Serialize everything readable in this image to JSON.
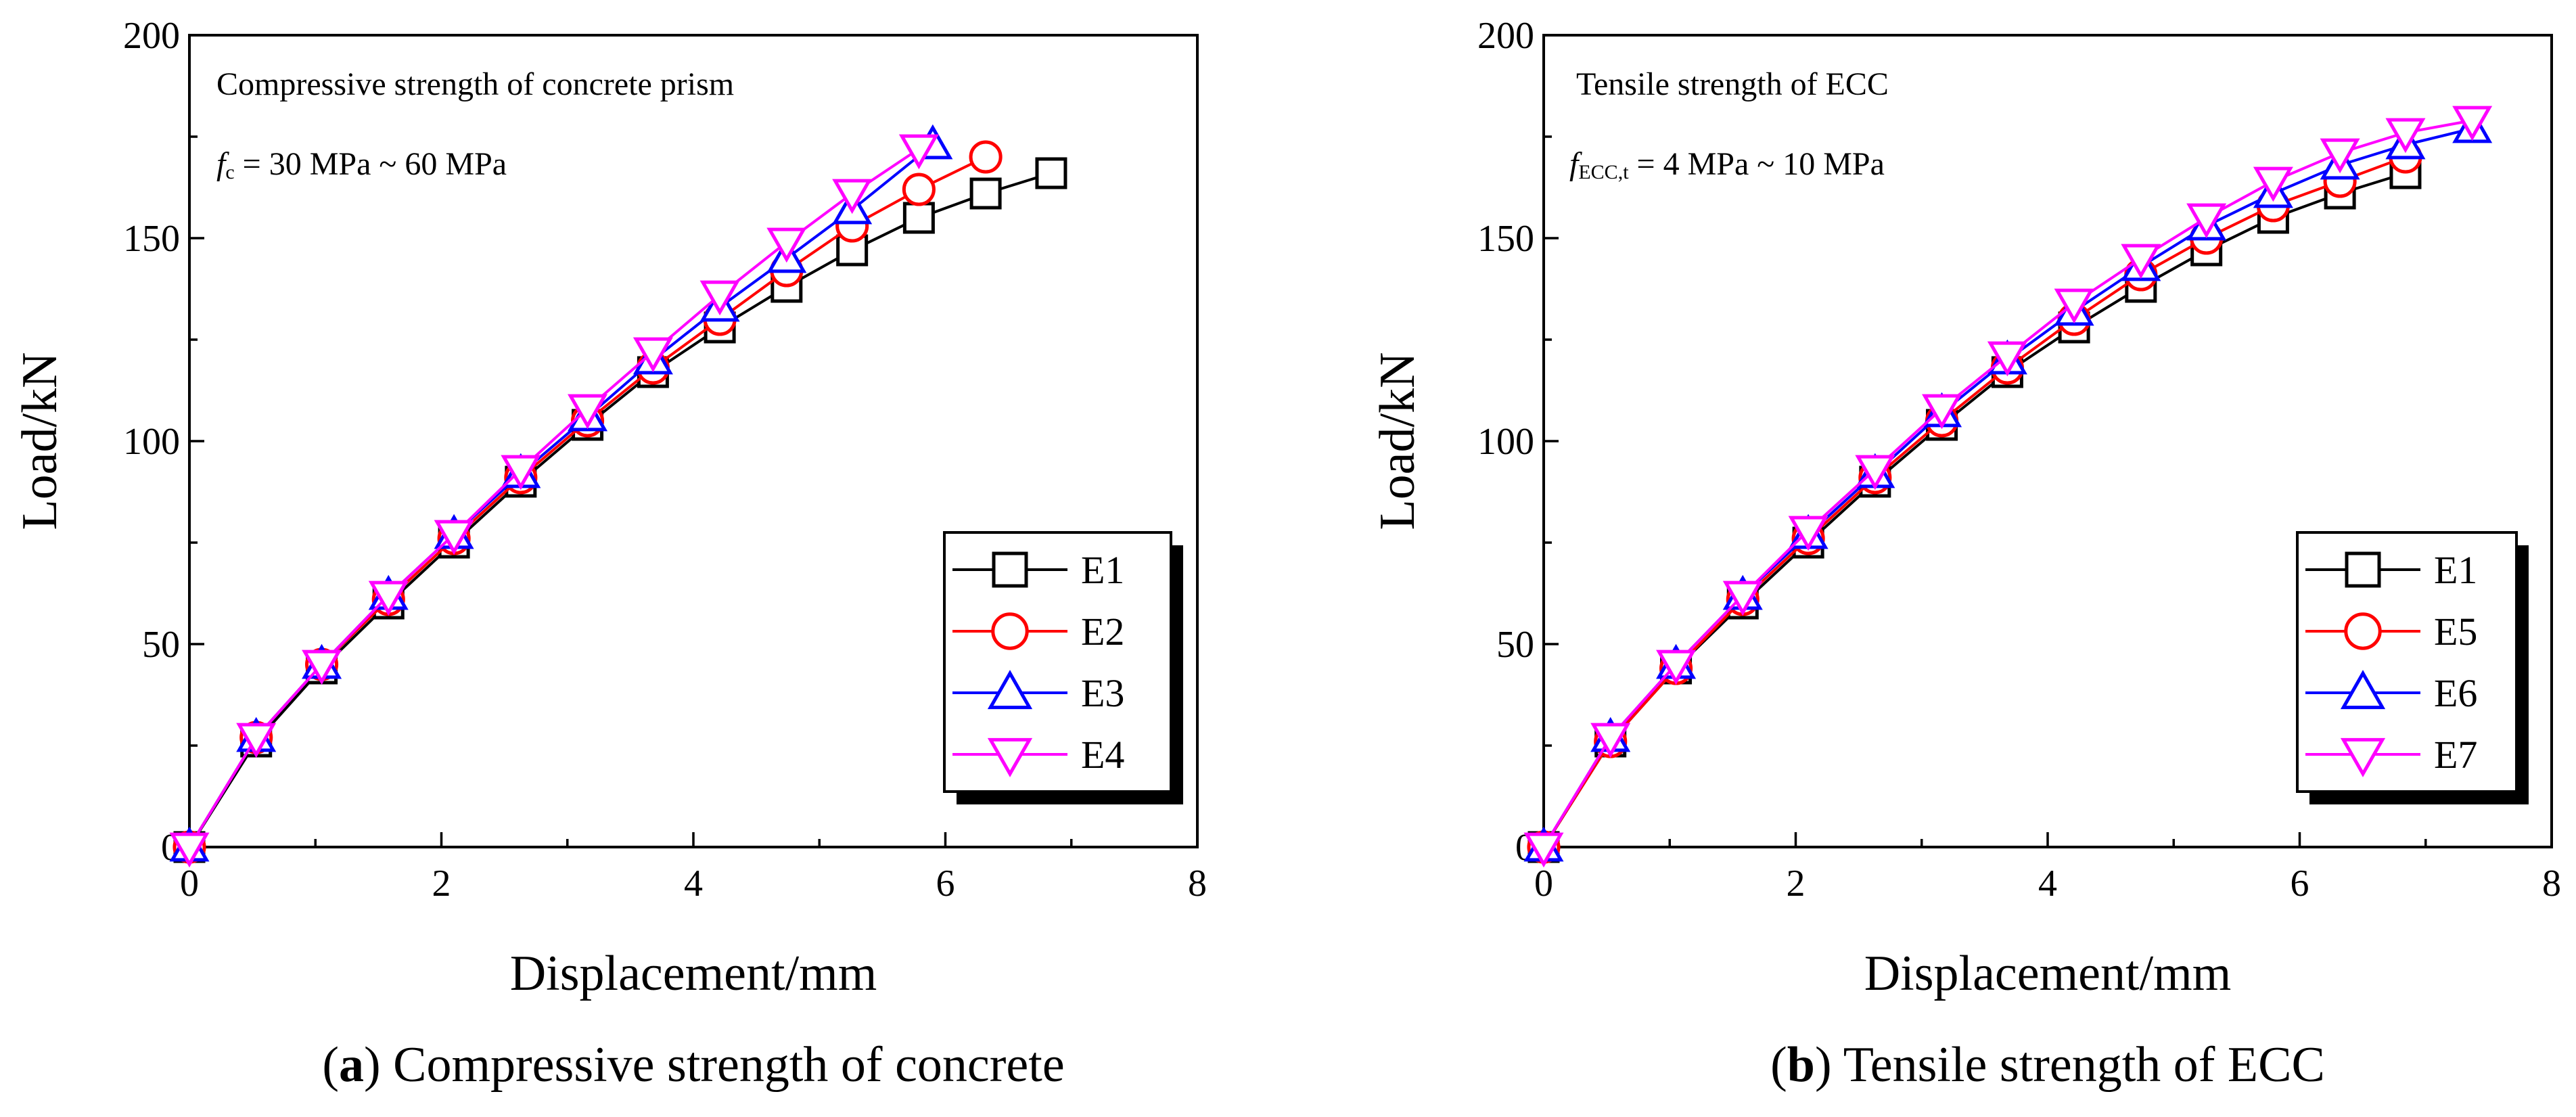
{
  "figure": {
    "panels": [
      {
        "caption": {
          "prefix": "(",
          "letter": "a",
          "rest": ") Compressive strength of concrete"
        },
        "annotation_title": "Compressive strength of concrete prism",
        "annotation_param": {
          "symbol": "f",
          "subscript": "c",
          "rest": " = 30 MPa ~ 60 MPa"
        }
      },
      {
        "caption": {
          "prefix": "(",
          "letter": "b",
          "rest": ") Tensile strength of ECC"
        },
        "annotation_title": "Tensile strength of ECC",
        "annotation_param": {
          "symbol": "f",
          "subscript": "ECC,t",
          "rest": " = 4 MPa ~ 10 MPa"
        }
      }
    ]
  },
  "chart_data": [
    {
      "type": "line",
      "title": "Compressive strength of concrete prism",
      "xlabel": "Displacement/mm",
      "ylabel": "Load/kN",
      "xlim": [
        0,
        8
      ],
      "ylim": [
        0,
        200
      ],
      "xticks": [
        0,
        2,
        4,
        6,
        8
      ],
      "yticks": [
        0,
        50,
        100,
        150,
        200
      ],
      "legend_position": "bottom-right",
      "series": [
        {
          "name": "E1",
          "color": "#000000",
          "marker": "square",
          "x": [
            0,
            0.53,
            1.05,
            1.58,
            2.1,
            2.63,
            3.16,
            3.68,
            4.21,
            4.74,
            5.26,
            5.79,
            6.32,
            6.84
          ],
          "y": [
            0,
            26,
            44,
            60,
            75,
            90,
            104,
            117,
            128,
            138,
            147,
            155,
            161,
            166
          ]
        },
        {
          "name": "E2",
          "color": "#ff0000",
          "marker": "circle",
          "x": [
            0,
            0.53,
            1.05,
            1.58,
            2.1,
            2.63,
            3.16,
            3.68,
            4.21,
            4.74,
            5.26,
            5.79,
            6.32
          ],
          "y": [
            0,
            27,
            45,
            61,
            76,
            91,
            105,
            118,
            130,
            142,
            153,
            162,
            170
          ]
        },
        {
          "name": "E3",
          "color": "#0000ff",
          "marker": "triangle-up",
          "x": [
            0,
            0.53,
            1.05,
            1.58,
            2.1,
            2.63,
            3.16,
            3.68,
            4.21,
            4.74,
            5.26,
            5.9
          ],
          "y": [
            0,
            27,
            45,
            62,
            77,
            92,
            106,
            120,
            133,
            145,
            157,
            173
          ]
        },
        {
          "name": "E4",
          "color": "#ff00ff",
          "marker": "triangle-down",
          "x": [
            0,
            0.53,
            1.05,
            1.58,
            2.1,
            2.63,
            3.16,
            3.68,
            4.21,
            4.74,
            5.26,
            5.79
          ],
          "y": [
            0,
            27,
            45,
            62,
            77,
            93,
            108,
            122,
            136,
            149,
            161,
            172
          ]
        }
      ]
    },
    {
      "type": "line",
      "title": "Tensile strength of ECC",
      "xlabel": "Displacement/mm",
      "ylabel": "Load/kN",
      "xlim": [
        0,
        8
      ],
      "ylim": [
        0,
        200
      ],
      "xticks": [
        0,
        2,
        4,
        6,
        8
      ],
      "yticks": [
        0,
        50,
        100,
        150,
        200
      ],
      "legend_position": "bottom-right",
      "series": [
        {
          "name": "E1",
          "color": "#000000",
          "marker": "square",
          "x": [
            0,
            0.53,
            1.05,
            1.58,
            2.1,
            2.63,
            3.16,
            3.68,
            4.21,
            4.74,
            5.26,
            5.79,
            6.32,
            6.84
          ],
          "y": [
            0,
            26,
            44,
            60,
            75,
            90,
            104,
            117,
            128,
            138,
            147,
            155,
            161,
            166
          ]
        },
        {
          "name": "E5",
          "color": "#ff0000",
          "marker": "circle",
          "x": [
            0,
            0.53,
            1.05,
            1.58,
            2.1,
            2.63,
            3.16,
            3.68,
            4.21,
            4.74,
            5.26,
            5.79,
            6.32,
            6.84
          ],
          "y": [
            0,
            26,
            44,
            61,
            76,
            91,
            105,
            118,
            130,
            141,
            150,
            158,
            164,
            170
          ]
        },
        {
          "name": "E6",
          "color": "#0000ff",
          "marker": "triangle-up",
          "x": [
            0,
            0.53,
            1.05,
            1.58,
            2.1,
            2.63,
            3.16,
            3.68,
            4.21,
            4.74,
            5.26,
            5.79,
            6.32,
            6.84,
            7.37
          ],
          "y": [
            0,
            27,
            45,
            62,
            77,
            92,
            107,
            120,
            132,
            143,
            153,
            161,
            168,
            173,
            177
          ]
        },
        {
          "name": "E7",
          "color": "#ff00ff",
          "marker": "triangle-down",
          "x": [
            0,
            0.53,
            1.05,
            1.58,
            2.1,
            2.63,
            3.16,
            3.68,
            4.21,
            4.74,
            5.26,
            5.79,
            6.32,
            6.84,
            7.37
          ],
          "y": [
            0,
            27,
            45,
            62,
            78,
            93,
            108,
            121,
            134,
            145,
            155,
            164,
            171,
            176,
            179
          ]
        }
      ]
    }
  ]
}
